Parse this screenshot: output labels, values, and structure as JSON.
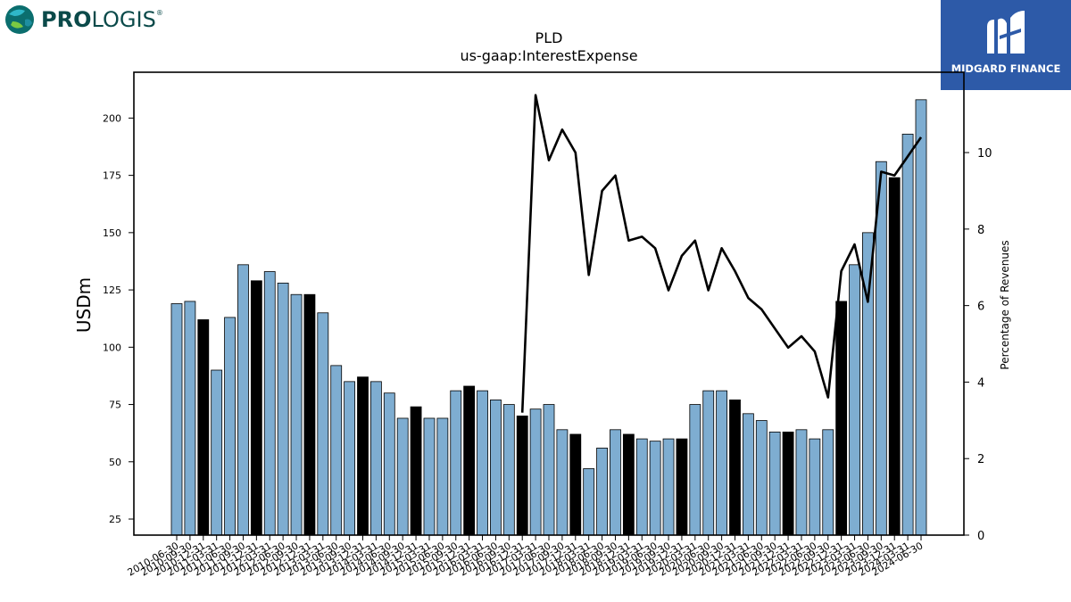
{
  "branding": {
    "left_logo": {
      "text_bold": "PRO",
      "text_light": "LOGIS",
      "mark": "®",
      "icon": "globe-icon"
    },
    "right_logo": {
      "name": "MIDGARD FINANCE",
      "icon": "midgard-m-icon"
    }
  },
  "chart_data": {
    "type": "bar",
    "title": "PLD",
    "subtitle": "us-gaap:InterestExpense",
    "ylabel": "USDm",
    "y2label": "Percentage of Revenues",
    "ylim": [
      18,
      220
    ],
    "y2lim": [
      0,
      12.1
    ],
    "yticks": [
      25,
      50,
      75,
      100,
      125,
      150,
      175,
      200
    ],
    "y2ticks": [
      0,
      2,
      4,
      6,
      8,
      10
    ],
    "grid": false,
    "colors": {
      "bar": "#7eadd1",
      "bar_q4": "#000000",
      "line": "#000000"
    },
    "categories": [
      "2010-06-30",
      "2010-09-30",
      "2010-12-31",
      "2011-03-31",
      "2011-06-30",
      "2011-09-30",
      "2011-12-31",
      "2012-03-31",
      "2012-06-30",
      "2012-09-30",
      "2012-12-31",
      "2013-03-31",
      "2013-06-30",
      "2013-09-30",
      "2013-12-31",
      "2014-03-31",
      "2014-06-30",
      "2014-09-30",
      "2014-12-31",
      "2015-03-31",
      "2015-06-30",
      "2015-09-30",
      "2015-12-31",
      "2016-03-31",
      "2016-06-30",
      "2016-09-30",
      "2016-12-31",
      "2017-03-31",
      "2017-06-30",
      "2017-09-30",
      "2017-12-31",
      "2018-03-31",
      "2018-06-30",
      "2018-09-30",
      "2018-12-31",
      "2019-03-31",
      "2019-06-30",
      "2019-09-30",
      "2019-12-31",
      "2020-03-31",
      "2020-06-30",
      "2020-09-30",
      "2020-12-31",
      "2021-03-31",
      "2021-06-30",
      "2021-09-30",
      "2021-12-31",
      "2022-03-31",
      "2022-06-30",
      "2022-09-30",
      "2022-12-31",
      "2023-03-31",
      "2023-06-30",
      "2023-09-30",
      "2023-12-31",
      "2024-03-31",
      "2024-06-30"
    ],
    "series": [
      {
        "type": "bar",
        "values": [
          119,
          120,
          112,
          90,
          113,
          136,
          129,
          133,
          128,
          123,
          123,
          115,
          92,
          85,
          87,
          85,
          80,
          69,
          74,
          69,
          69,
          81,
          83,
          81,
          77,
          75,
          70,
          73,
          75,
          64,
          62,
          47,
          56,
          64,
          62,
          60,
          59,
          60,
          60,
          75,
          81,
          81,
          77,
          71,
          68,
          63,
          63,
          64,
          60,
          64,
          120,
          136,
          150,
          181,
          174,
          193,
          208
        ]
      },
      {
        "type": "line",
        "axis": "right",
        "values": [
          null,
          null,
          null,
          null,
          null,
          null,
          null,
          null,
          null,
          null,
          null,
          null,
          null,
          null,
          null,
          null,
          null,
          null,
          null,
          null,
          null,
          null,
          null,
          null,
          null,
          null,
          3.2,
          11.5,
          9.8,
          10.6,
          10.0,
          6.8,
          9.0,
          9.4,
          7.7,
          7.8,
          7.5,
          6.4,
          7.3,
          7.7,
          6.4,
          7.5,
          6.9,
          6.2,
          5.9,
          5.4,
          4.9,
          5.2,
          4.8,
          3.6,
          6.9,
          7.6,
          6.1,
          9.5,
          9.4,
          9.9,
          10.4
        ]
      }
    ]
  }
}
